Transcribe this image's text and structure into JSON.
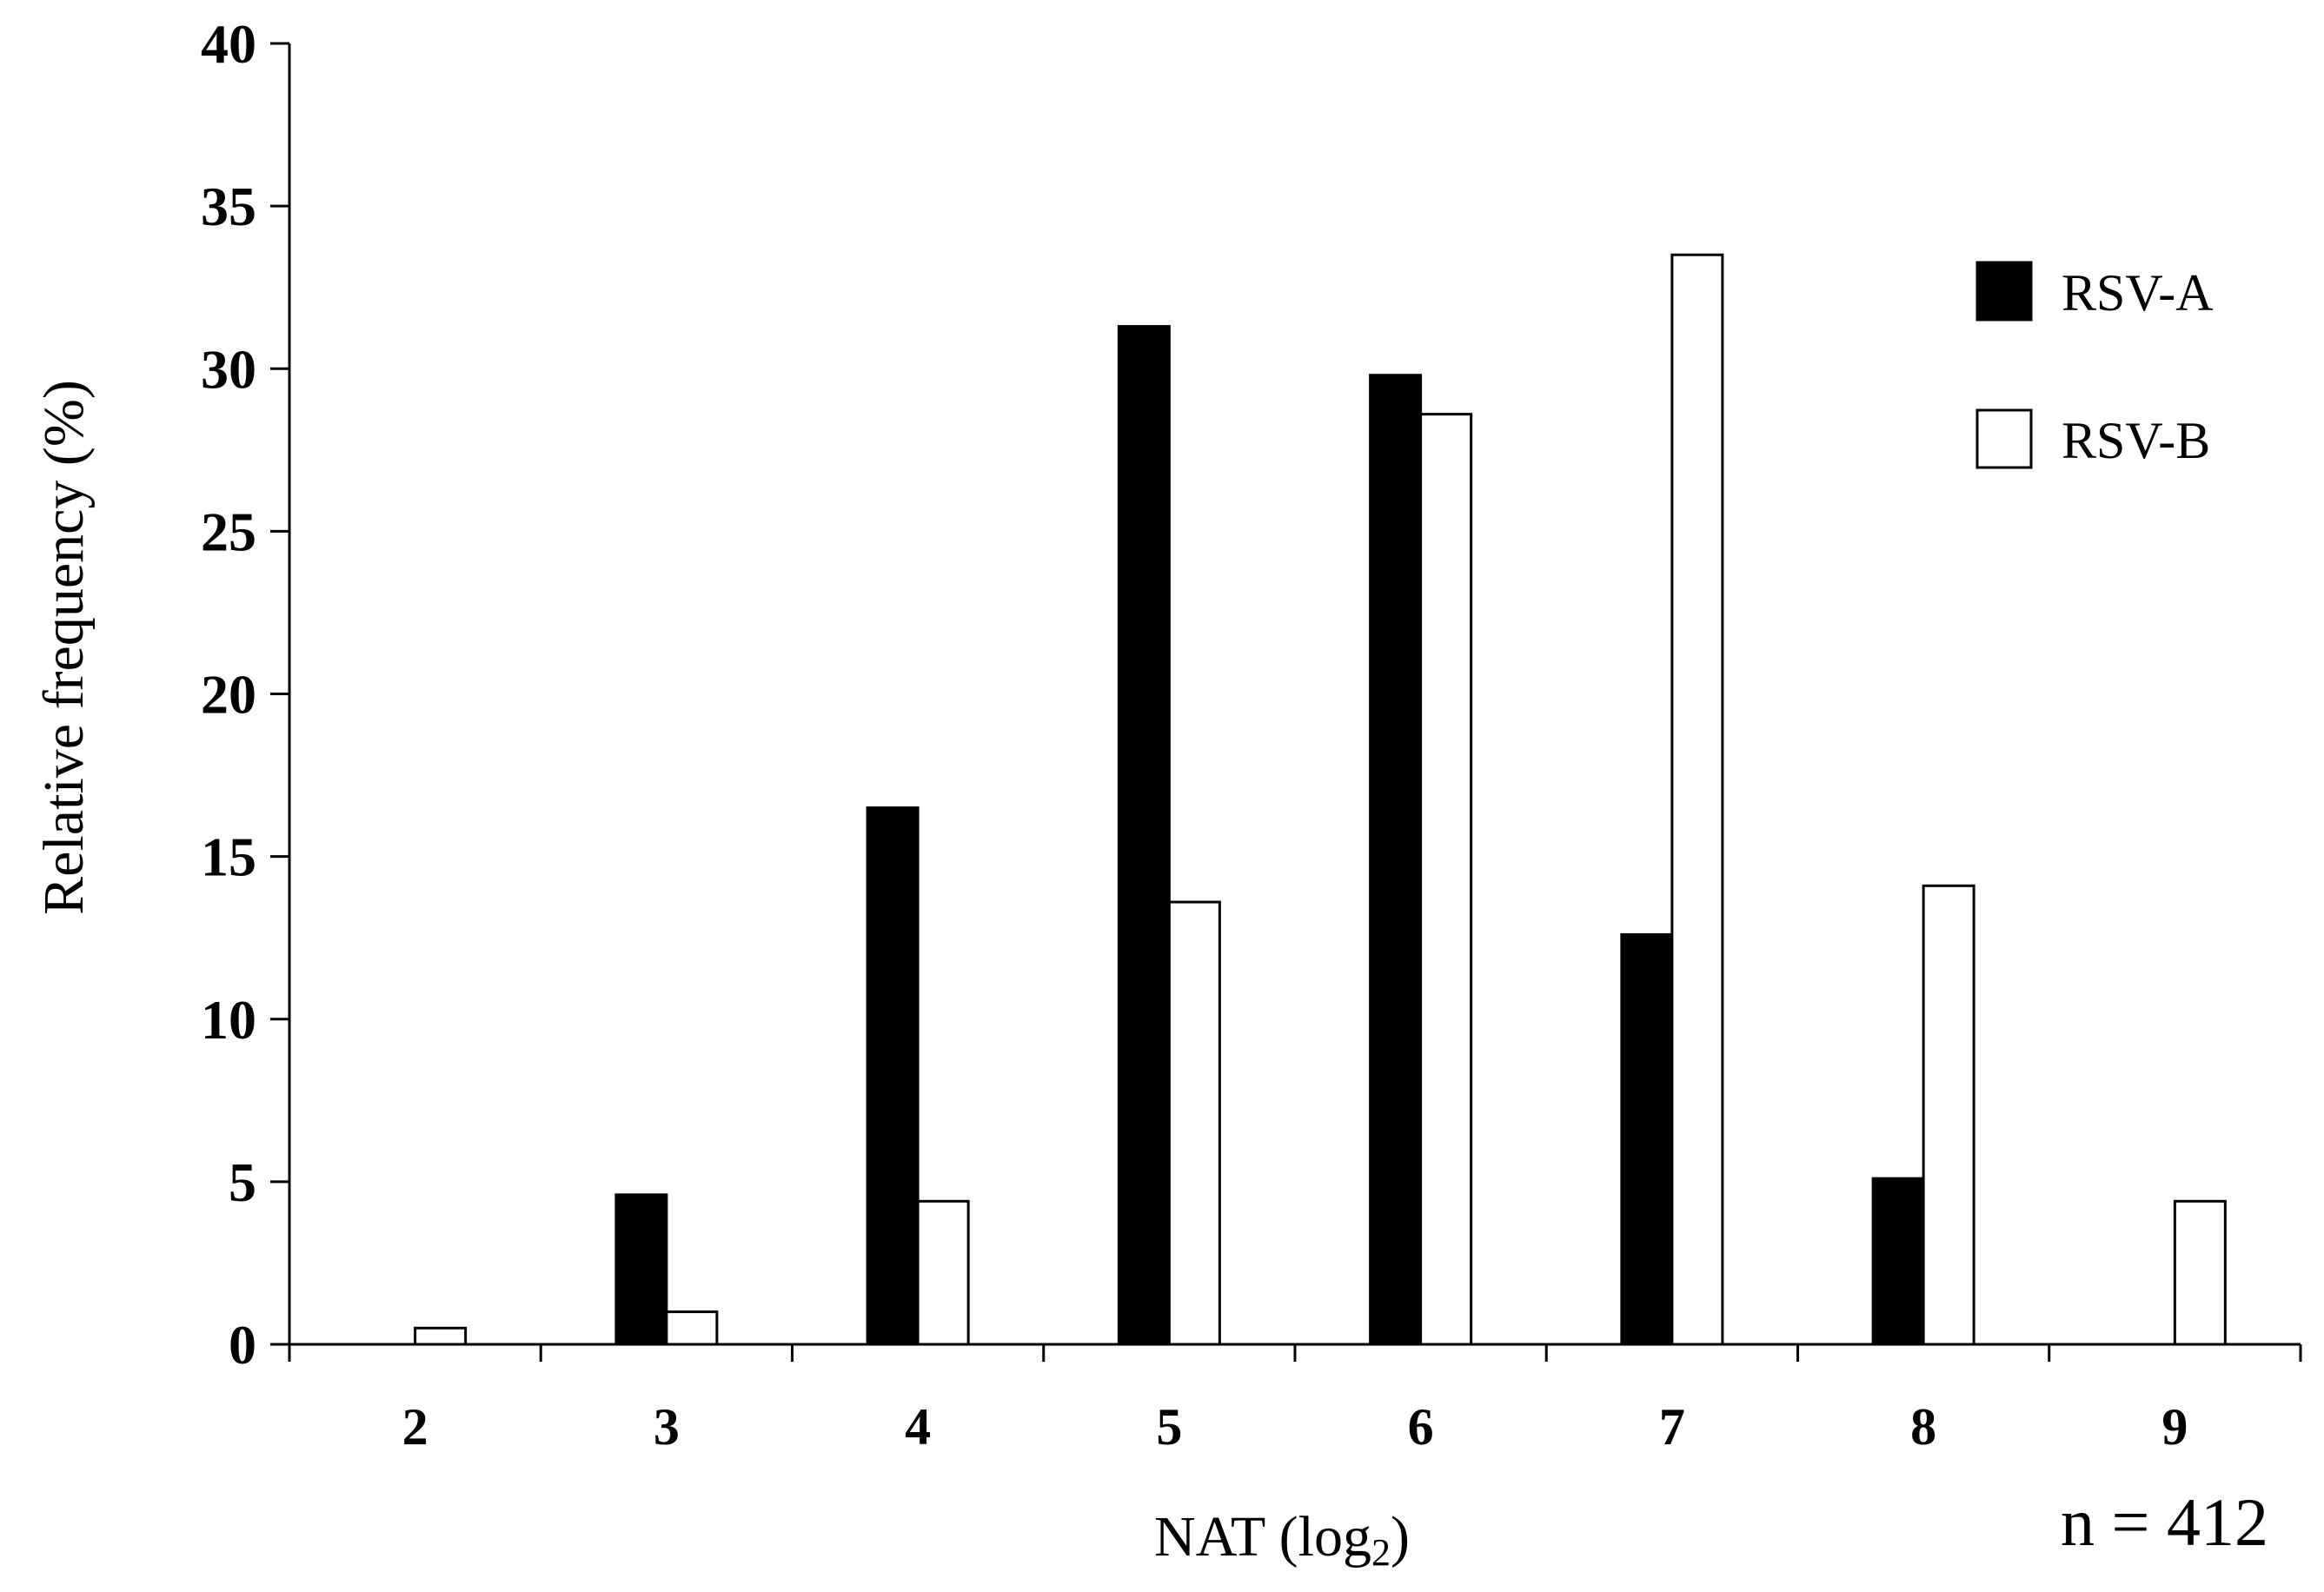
{
  "chart_data": {
    "type": "bar",
    "title": "",
    "xlabel": "NAT  (log",
    "xlabel_subscript": "2",
    "xlabel_suffix": ")",
    "ylabel": "Relative frequency (%)",
    "ylim": [
      0,
      40
    ],
    "yticks": [
      0,
      5,
      10,
      15,
      20,
      25,
      30,
      35,
      40
    ],
    "categories": [
      "2",
      "3",
      "4",
      "5",
      "6",
      "7",
      "8",
      "9"
    ],
    "series": [
      {
        "name": "RSV-A",
        "color": "#000000",
        "values": [
          0,
          4.6,
          16.5,
          31.3,
          29.8,
          12.6,
          5.1,
          0
        ]
      },
      {
        "name": "RSV-B",
        "color": "#ffffff",
        "values": [
          0.5,
          1.0,
          4.4,
          13.6,
          28.6,
          33.5,
          14.1,
          4.4
        ]
      }
    ],
    "legend_position": "top-right",
    "grid": false,
    "annotation": "n = 412"
  }
}
